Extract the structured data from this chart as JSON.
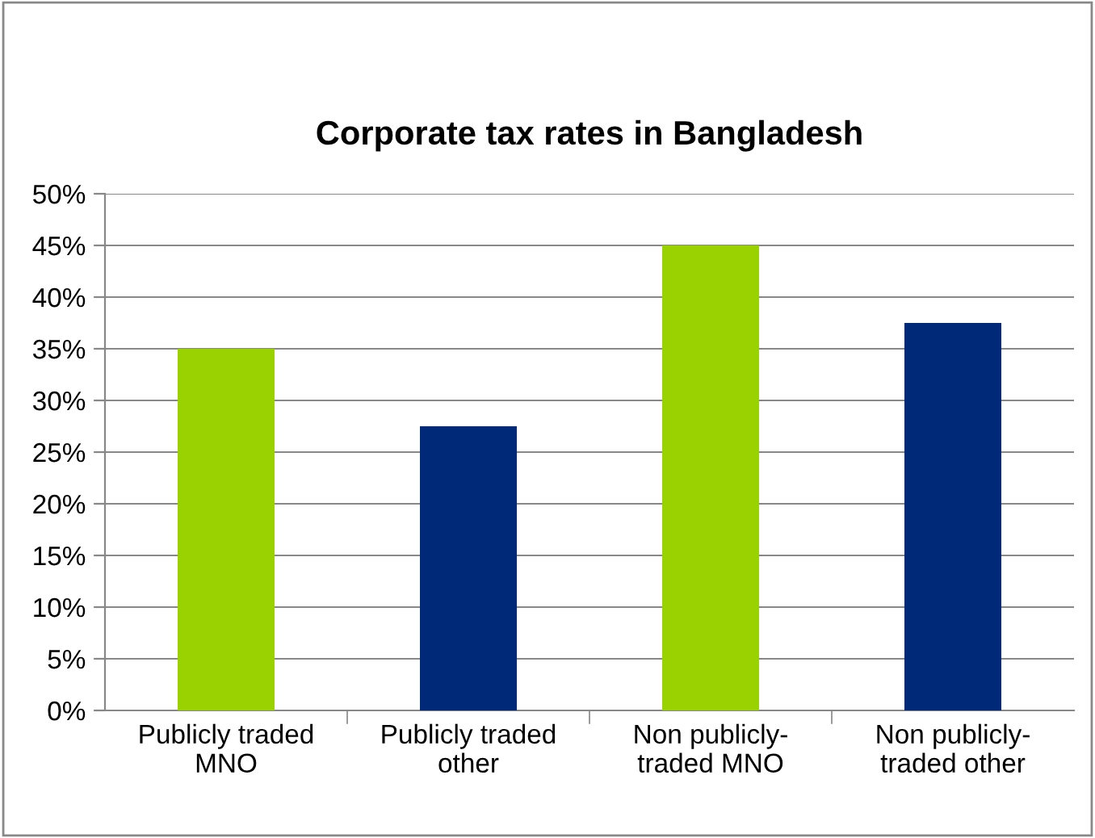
{
  "chart_data": {
    "type": "bar",
    "title": "Corporate tax rates in Bangladesh",
    "categories": [
      "Publicly traded\nMNO",
      "Publicly traded\nother",
      "Non publicly-\ntraded MNO",
      "Non publicly-\ntraded other"
    ],
    "values": [
      35,
      27.5,
      45,
      37.5
    ],
    "colors": [
      "#99d200",
      "#002a78",
      "#99d200",
      "#002a78"
    ],
    "ylim": [
      0,
      50
    ],
    "yticks": [
      {
        "value": 0,
        "label": "0%"
      },
      {
        "value": 5,
        "label": "5%"
      },
      {
        "value": 10,
        "label": "10%"
      },
      {
        "value": 15,
        "label": "15%"
      },
      {
        "value": 20,
        "label": "20%"
      },
      {
        "value": 25,
        "label": "25%"
      },
      {
        "value": 30,
        "label": "30%"
      },
      {
        "value": 35,
        "label": "35%"
      },
      {
        "value": 40,
        "label": "40%"
      },
      {
        "value": 45,
        "label": "45%"
      },
      {
        "value": 50,
        "label": "50%"
      }
    ],
    "grid": "y"
  }
}
